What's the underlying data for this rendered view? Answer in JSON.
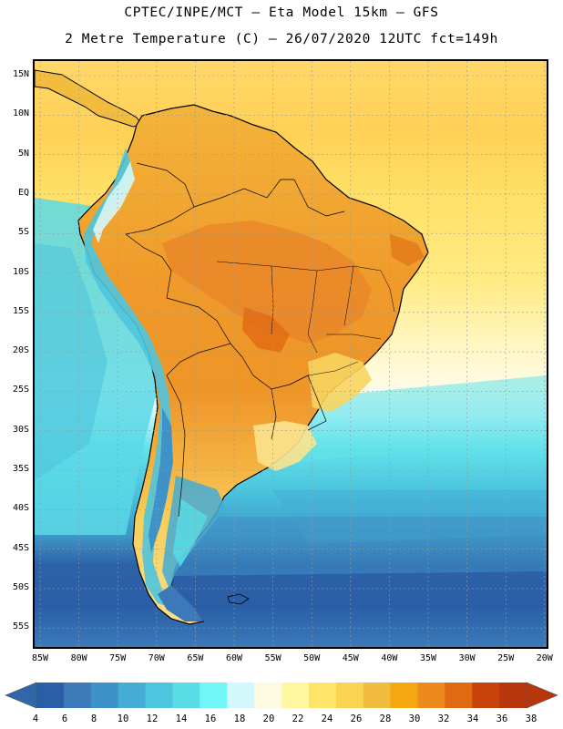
{
  "header": {
    "line1": "CPTEC/INPE/MCT —  Eta Model 15km — GFS",
    "line2": "2 Metre Temperature (C) — 26/07/2020 12UTC fct=149h"
  },
  "map": {
    "lat_labels": [
      "15N",
      "10N",
      "5N",
      "EQ",
      "5S",
      "10S",
      "15S",
      "20S",
      "25S",
      "30S",
      "35S",
      "40S",
      "45S",
      "50S",
      "55S"
    ],
    "lon_labels": [
      "85W",
      "80W",
      "75W",
      "70W",
      "65W",
      "60W",
      "55W",
      "50W",
      "45W",
      "40W",
      "35W",
      "30W",
      "25W",
      "20W"
    ]
  },
  "colorbar": {
    "labels": [
      "4",
      "6",
      "8",
      "10",
      "12",
      "14",
      "16",
      "18",
      "20",
      "22",
      "24",
      "26",
      "28",
      "30",
      "32",
      "34",
      "36",
      "38"
    ],
    "colors": [
      "#2a5ea6",
      "#3b79b9",
      "#3f92c8",
      "#44acd5",
      "#4ec5de",
      "#58dde6",
      "#70f6f6",
      "#d4f7fb",
      "#fffbe2",
      "#fff7a0",
      "#ffe46a",
      "#fbd352",
      "#f2bd3e",
      "#f4a70f",
      "#ec8a1e",
      "#e06a12",
      "#c8430b",
      "#b8360b"
    ],
    "low_color": "#2f67a8",
    "high_color": "#b8360b"
  }
}
